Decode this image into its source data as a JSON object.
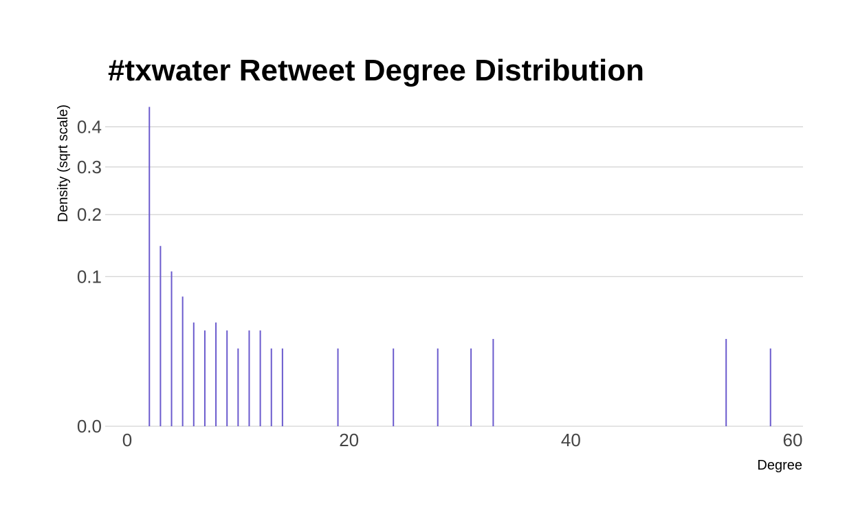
{
  "chart_data": {
    "type": "bar",
    "title": "#txwater Retweet Degree Distribution",
    "xlabel": "Degree",
    "ylabel": "Density (sqrt scale)",
    "y_scale": "sqrt",
    "xlim": [
      0,
      60
    ],
    "ylim": [
      0,
      0.46
    ],
    "x_ticks": [
      0,
      20,
      40,
      60
    ],
    "x_tick_labels": [
      "0",
      "20",
      "40",
      "60"
    ],
    "y_ticks": [
      0,
      0.1,
      0.2,
      0.3,
      0.4
    ],
    "y_tick_labels": [
      "0.0",
      "0.1",
      "0.2",
      "0.3",
      "0.4"
    ],
    "grid": "horizontal",
    "color": "#6a5acd",
    "x": [
      2,
      3,
      4,
      5,
      6,
      7,
      8,
      9,
      10,
      11,
      12,
      13,
      14,
      19,
      24,
      28,
      31,
      33,
      54,
      58
    ],
    "values": [
      0.455,
      0.145,
      0.107,
      0.075,
      0.048,
      0.041,
      0.048,
      0.041,
      0.027,
      0.041,
      0.041,
      0.027,
      0.027,
      0.027,
      0.027,
      0.027,
      0.027,
      0.034,
      0.034,
      0.027
    ]
  }
}
